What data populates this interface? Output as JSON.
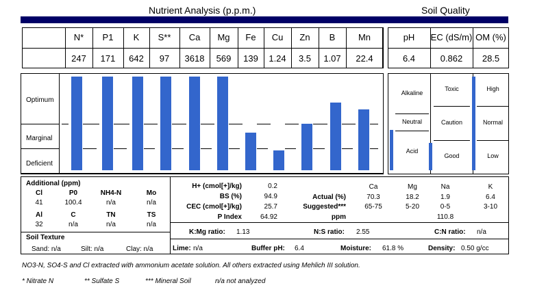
{
  "titles": {
    "nutrient": "Nutrient Analysis (p.p.m.)",
    "soil": "Soil Quality"
  },
  "nutrients": [
    {
      "name": "N*",
      "value": "247",
      "level": 1.0
    },
    {
      "name": "P1",
      "value": "171",
      "level": 1.0
    },
    {
      "name": "K",
      "value": "642",
      "level": 1.0
    },
    {
      "name": "S**",
      "value": "97",
      "level": 1.0
    },
    {
      "name": "Ca",
      "value": "3618",
      "level": 1.0
    },
    {
      "name": "Mg",
      "value": "569",
      "level": 1.0
    },
    {
      "name": "Fe",
      "value": "139",
      "level": 0.4
    },
    {
      "name": "Cu",
      "value": "1.24",
      "level": 0.21
    },
    {
      "name": "Zn",
      "value": "3.5",
      "level": 0.5
    },
    {
      "name": "B",
      "value": "1.07",
      "level": 0.72
    },
    {
      "name": "Mn",
      "value": "22.4",
      "level": 0.65
    }
  ],
  "soil": [
    {
      "name": "pH",
      "value": "6.4",
      "level": 0.43,
      "zones": [
        "Alkaline",
        "Neutral",
        "Acid"
      ]
    },
    {
      "name": "EC (dS/m)",
      "value": "0.862",
      "level": 0.29,
      "zones": [
        "Toxic",
        "Caution",
        "Good"
      ]
    },
    {
      "name": "OM (%)",
      "value": "28.5",
      "level": 1.0,
      "zones": [
        "High",
        "Normal",
        "Low"
      ]
    }
  ],
  "zones": [
    "Optimum",
    "Marginal",
    "Deficient"
  ],
  "bar_color": "#3366cc",
  "title_bar_color": "#000066",
  "additional": {
    "title": "Additional (ppm)",
    "row1": [
      [
        "Cl",
        "41"
      ],
      [
        "P0",
        "100.4"
      ],
      [
        "NH4-N",
        "n/a"
      ],
      [
        "Mo",
        "n/a"
      ]
    ],
    "row2": [
      [
        "Al",
        "32"
      ],
      [
        "C",
        "n/a"
      ],
      [
        "TN",
        "n/a"
      ],
      [
        "TS",
        "n/a"
      ]
    ]
  },
  "texture": {
    "title": "Soil Texture",
    "sand": "Sand: n/a",
    "silt": "Silt: n/a",
    "clay": "Clay: n/a"
  },
  "cec": [
    [
      "H+ (cmol[+]/kg)",
      "0.2"
    ],
    [
      "BS (%)",
      "94.9"
    ],
    [
      "CEC (cmol[+]/kg)",
      "25.7"
    ],
    [
      "P Index",
      "64.92"
    ]
  ],
  "bases": {
    "headers": [
      "Ca",
      "Mg",
      "Na",
      "K"
    ],
    "actual_label": "Actual (%)",
    "actual": [
      "70.3",
      "18.2",
      "1.9",
      "6.4"
    ],
    "suggested_label": "Suggested***",
    "suggested": [
      "65-75",
      "5-20",
      "0-5",
      "3-10"
    ],
    "ppm_label": "ppm",
    "ppm_na": "110.8"
  },
  "ratios": {
    "kmg_label": "K:Mg ratio:",
    "kmg": "1.13",
    "ns_label": "N:S ratio:",
    "ns": "2.55",
    "cn_label": "C:N ratio:",
    "cn": "n/a"
  },
  "misc": {
    "lime_label": "Lime:",
    "lime": "n/a",
    "buffer_label": "Buffer pH:",
    "buffer": "6.4",
    "moisture_label": "Moisture:",
    "moisture": "61.8 %",
    "density_label": "Density:",
    "density": "0.50 g/cc"
  },
  "footer": {
    "note": "NO3-N, SO4-S and Cl extracted with ammonium acetate solution. All others extracted using Mehlich III solution.",
    "nitrate": "* Nitrate N",
    "sulfate": "** Sulfate S",
    "mineral": "*** Mineral Soil",
    "na": "n/a not analyzed"
  }
}
